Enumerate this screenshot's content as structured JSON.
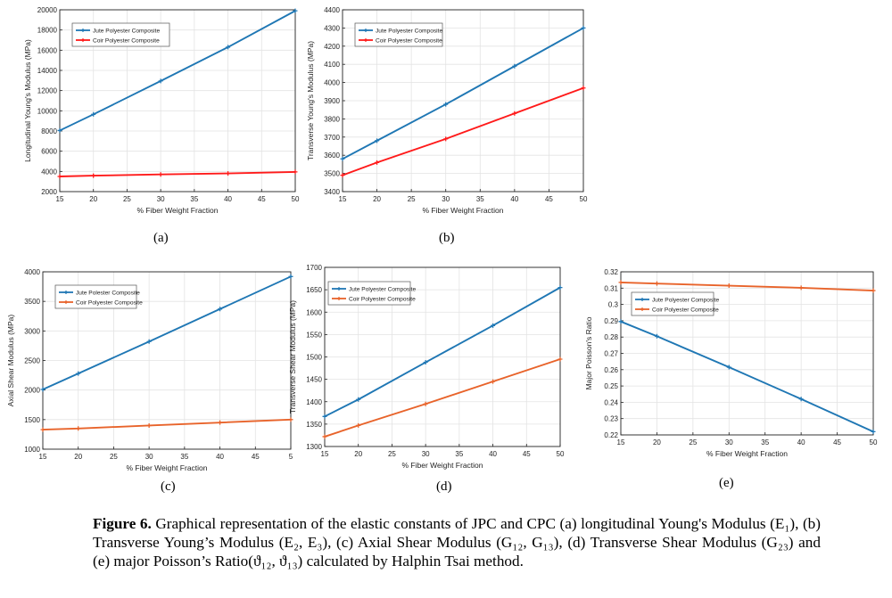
{
  "chart_data": [
    {
      "type": "line",
      "id": "a",
      "x": [
        15,
        20,
        30,
        40,
        50
      ],
      "xlim": [
        15,
        50
      ],
      "xticks": [
        "15",
        "20",
        "25",
        "30",
        "35",
        "40",
        "45",
        "50"
      ],
      "ylim": [
        2000,
        20000
      ],
      "yticks": [
        "2000",
        "4000",
        "6000",
        "8000",
        "10000",
        "12000",
        "14000",
        "16000",
        "18000",
        "20000"
      ],
      "xlabel": "% Fiber Weight Fraction",
      "ylabel": "Longitudinal Young's Modulus (MPa)",
      "series": [
        {
          "name": "Jute Polyester Composite",
          "color": "#1f77b4",
          "values": [
            8050,
            9650,
            12950,
            16300,
            19900
          ]
        },
        {
          "name": "Coir Polyester Composite",
          "color": "#ff1a1a",
          "values": [
            3500,
            3580,
            3700,
            3800,
            3950
          ]
        }
      ]
    },
    {
      "type": "line",
      "id": "b",
      "x": [
        15,
        20,
        30,
        40,
        50
      ],
      "xlim": [
        15,
        50
      ],
      "xticks": [
        "15",
        "20",
        "25",
        "30",
        "35",
        "40",
        "45",
        "50"
      ],
      "ylim": [
        3400,
        4400
      ],
      "yticks": [
        "3400",
        "3500",
        "3600",
        "3700",
        "3800",
        "3900",
        "4000",
        "4100",
        "4200",
        "4300",
        "4400"
      ],
      "xlabel": "% Fiber Weight Fraction",
      "ylabel": "Transverse Young's Modulus (MPa)",
      "series": [
        {
          "name": "Jute Polyester Composite",
          "color": "#1f77b4",
          "values": [
            3580,
            3680,
            3880,
            4090,
            4300
          ]
        },
        {
          "name": "Coir Polyester Composite",
          "color": "#ff1a1a",
          "values": [
            3490,
            3560,
            3690,
            3830,
            3970
          ]
        }
      ]
    },
    {
      "type": "line",
      "id": "c",
      "x": [
        15,
        20,
        30,
        40,
        50
      ],
      "xlim": [
        15,
        50
      ],
      "xticks": [
        "15",
        "20",
        "25",
        "30",
        "35",
        "40",
        "45",
        "5"
      ],
      "ylim": [
        1000,
        4000
      ],
      "yticks": [
        "1000",
        "1500",
        "2000",
        "2500",
        "3000",
        "3500",
        "4000"
      ],
      "xlabel": "% Fiber Weight Fraction",
      "ylabel": "Axial Shear Modulus (MPa)",
      "series": [
        {
          "name": "Jute Polester Composite",
          "color": "#1f77b4",
          "values": [
            2010,
            2280,
            2820,
            3370,
            3920
          ]
        },
        {
          "name": "Coir Polyester Composite",
          "color": "#e8632a",
          "values": [
            1330,
            1350,
            1400,
            1450,
            1500
          ]
        }
      ]
    },
    {
      "type": "line",
      "id": "d",
      "x": [
        15,
        20,
        30,
        40,
        50
      ],
      "xlim": [
        15,
        50
      ],
      "xticks": [
        "15",
        "20",
        "25",
        "30",
        "35",
        "40",
        "45",
        "50"
      ],
      "ylim": [
        1300,
        1700
      ],
      "yticks": [
        "1300",
        "1350",
        "1400",
        "1450",
        "1500",
        "1550",
        "1600",
        "1650",
        "1700"
      ],
      "xlabel": "% Fiber Weight Fraction",
      "ylabel": "Transverse Shear Modulus (MPa)",
      "series": [
        {
          "name": "Jute Polyester Composite",
          "color": "#1f77b4",
          "values": [
            1367,
            1405,
            1488,
            1570,
            1655
          ]
        },
        {
          "name": "Coir Polyester Composite",
          "color": "#e8632a",
          "values": [
            1322,
            1347,
            1395,
            1445,
            1495
          ]
        }
      ]
    },
    {
      "type": "line",
      "id": "e",
      "x": [
        15,
        20,
        30,
        40,
        50
      ],
      "xlim": [
        15,
        50
      ],
      "xticks": [
        "15",
        "20",
        "25",
        "30",
        "35",
        "40",
        "45",
        "50"
      ],
      "ylim": [
        0.22,
        0.32
      ],
      "yticks": [
        "0.22",
        "0.23",
        "0.24",
        "0.25",
        "0.26",
        "0.27",
        "0.28",
        "0.29",
        "0.3",
        "0.31",
        "0.32"
      ],
      "xlabel": "% Fiber Weight Fraction",
      "ylabel": "Major Poisson's Ratio",
      "series": [
        {
          "name": "Jute Polyester Composite",
          "color": "#1f77b4",
          "values": [
            0.2895,
            0.2805,
            0.2615,
            0.242,
            0.222
          ]
        },
        {
          "name": "Coir Polyester Composite",
          "color": "#e8632a",
          "values": [
            0.3135,
            0.3128,
            0.3115,
            0.3102,
            0.3085
          ]
        }
      ]
    }
  ],
  "sub_labels": {
    "a": "(a)",
    "b": "(b)",
    "c": "(c)",
    "d": "(d)",
    "e": "(e)"
  },
  "caption": {
    "lead": "Figure 6.",
    "text": " Graphical representation of the elastic constants of JPC and CPC (a) longitudinal Young's Modulus (E₁), (b) Transverse Young’s Modulus (E₂, E₃), (c) Axial Shear Modulus (G₁₂, G₁₃), (d) Transverse Shear Modulus (G₂₃) and (e) major Poisson’s Ratio(ϑ₁₂, ϑ₁₃) calculated by Halphin Tsai method."
  }
}
